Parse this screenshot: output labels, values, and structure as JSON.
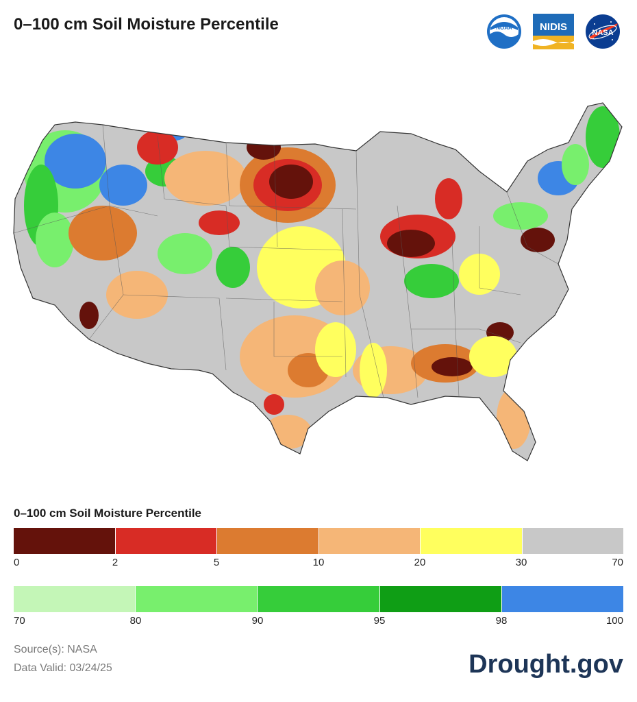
{
  "title": "0–100 cm Soil Moisture Percentile",
  "logos": [
    {
      "name": "noaa-logo",
      "text": "NOAA"
    },
    {
      "name": "nidis-logo",
      "text": "NIDIS"
    },
    {
      "name": "nasa-logo",
      "text": "NASA"
    }
  ],
  "legend": {
    "title": "0–100 cm Soil Moisture Percentile",
    "row1": {
      "colors": [
        "#64120b",
        "#d82c25",
        "#dc7b30",
        "#f5b677",
        "#ffff5e",
        "#c8c8c8"
      ],
      "ticks": [
        "0",
        "2",
        "5",
        "10",
        "20",
        "30",
        "70"
      ]
    },
    "row2": {
      "colors": [
        "#c4f6b7",
        "#78ef6d",
        "#36cd3a",
        "#0f9e15",
        "#3d86e5"
      ],
      "ticks": [
        "70",
        "80",
        "90",
        "95",
        "98",
        "100"
      ]
    }
  },
  "footer": {
    "source": "Source(s): NASA",
    "valid": "Data Valid: 03/24/25",
    "brand": "Drought.gov"
  }
}
